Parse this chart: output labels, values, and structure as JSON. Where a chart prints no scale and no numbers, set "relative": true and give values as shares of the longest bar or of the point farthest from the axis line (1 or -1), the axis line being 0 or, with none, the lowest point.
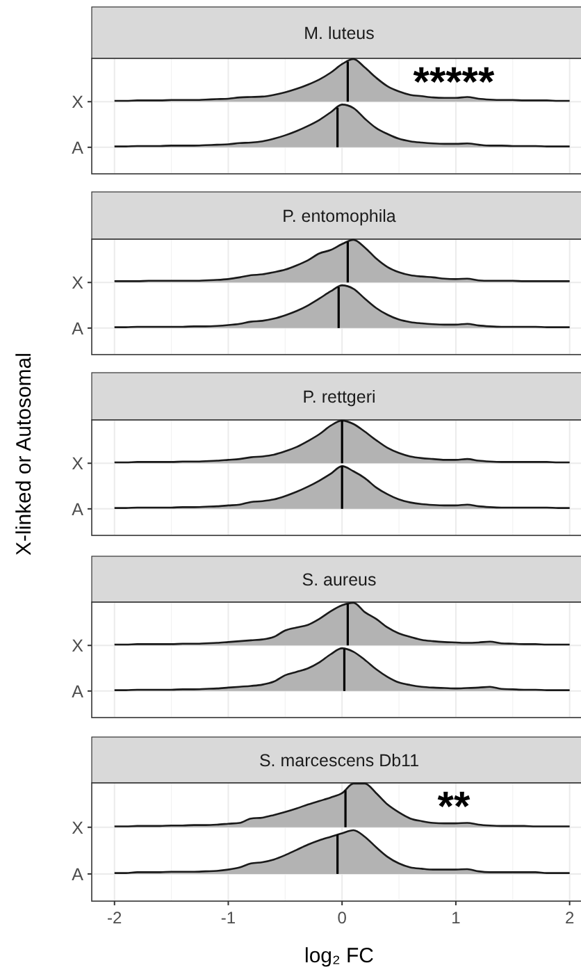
{
  "chart_data": [
    {
      "type": "area",
      "title": "M. luteus",
      "relative": true,
      "grid": true,
      "tick_labels": false,
      "xlim": [
        -2.2,
        2.1
      ],
      "xticks": [
        -2,
        -1,
        0,
        1,
        2
      ],
      "annotations": [
        "*****"
      ],
      "x": [
        -2,
        -1.9,
        -1.8,
        -1.7,
        -1.6,
        -1.5,
        -1.4,
        -1.3,
        -1.2,
        -1.1,
        -1,
        -0.9,
        -0.8,
        -0.7,
        -0.6,
        -0.5,
        -0.4,
        -0.3,
        -0.2,
        -0.1,
        0,
        0.1,
        0.2,
        0.3,
        0.4,
        0.5,
        0.6,
        0.7,
        0.8,
        0.9,
        1,
        1.1,
        1.2,
        1.3,
        1.4,
        1.5,
        1.6,
        1.7,
        1.8,
        1.9,
        2
      ],
      "ref_lines": [
        {
          "axis": "x",
          "value": 0.05
        }
      ],
      "series": [
        {
          "name": "X",
          "color": "#b3b3b3",
          "values": [
            0.02,
            0.02,
            0.03,
            0.03,
            0.03,
            0.04,
            0.04,
            0.04,
            0.05,
            0.06,
            0.07,
            0.1,
            0.11,
            0.12,
            0.16,
            0.22,
            0.3,
            0.4,
            0.52,
            0.68,
            0.88,
            1,
            0.8,
            0.56,
            0.36,
            0.24,
            0.16,
            0.13,
            0.1,
            0.09,
            0.09,
            0.11,
            0.07,
            0.05,
            0.04,
            0.04,
            0.03,
            0.03,
            0.03,
            0.02,
            0.02
          ]
        }
      ]
    },
    {
      "type": "area",
      "relative": true,
      "grid": true,
      "tick_labels": false,
      "xlim": [
        -2.2,
        2.1
      ],
      "xticks": [
        -2,
        -1,
        0,
        1,
        2
      ],
      "x": [
        -2,
        -1.9,
        -1.8,
        -1.7,
        -1.6,
        -1.5,
        -1.4,
        -1.3,
        -1.2,
        -1.1,
        -1,
        -0.9,
        -0.8,
        -0.7,
        -0.6,
        -0.5,
        -0.4,
        -0.3,
        -0.2,
        -0.1,
        0,
        0.1,
        0.2,
        0.3,
        0.4,
        0.5,
        0.6,
        0.7,
        0.8,
        0.9,
        1,
        1.1,
        1.2,
        1.3,
        1.4,
        1.5,
        1.6,
        1.7,
        1.8,
        1.9,
        2
      ],
      "ref_lines": [
        {
          "axis": "x",
          "value": -0.04
        }
      ],
      "series": [
        {
          "name": "A",
          "color": "#b3b3b3",
          "values": [
            0.02,
            0.02,
            0.03,
            0.03,
            0.03,
            0.04,
            0.04,
            0.04,
            0.05,
            0.06,
            0.07,
            0.1,
            0.11,
            0.14,
            0.2,
            0.28,
            0.38,
            0.5,
            0.64,
            0.82,
            1,
            0.92,
            0.67,
            0.45,
            0.31,
            0.2,
            0.14,
            0.11,
            0.09,
            0.08,
            0.08,
            0.09,
            0.06,
            0.04,
            0.04,
            0.03,
            0.03,
            0.03,
            0.02,
            0.02,
            0.02
          ]
        }
      ]
    },
    {
      "type": "area",
      "title": "P. entomophila",
      "relative": true,
      "grid": true,
      "tick_labels": false,
      "xlim": [
        -2.2,
        2.1
      ],
      "xticks": [
        -2,
        -1,
        0,
        1,
        2
      ],
      "x": [
        -2,
        -1.9,
        -1.8,
        -1.7,
        -1.6,
        -1.5,
        -1.4,
        -1.3,
        -1.2,
        -1.1,
        -1,
        -0.9,
        -0.8,
        -0.7,
        -0.6,
        -0.5,
        -0.4,
        -0.3,
        -0.2,
        -0.1,
        0,
        0.1,
        0.2,
        0.3,
        0.4,
        0.5,
        0.6,
        0.7,
        0.8,
        0.9,
        1,
        1.1,
        1.2,
        1.3,
        1.4,
        1.5,
        1.6,
        1.7,
        1.8,
        1.9,
        2
      ],
      "ref_lines": [
        {
          "axis": "x",
          "value": 0.05
        }
      ],
      "series": [
        {
          "name": "X",
          "color": "#b3b3b3",
          "values": [
            0.03,
            0.03,
            0.03,
            0.04,
            0.04,
            0.04,
            0.04,
            0.04,
            0.05,
            0.06,
            0.08,
            0.12,
            0.17,
            0.19,
            0.24,
            0.3,
            0.4,
            0.52,
            0.68,
            0.76,
            0.9,
            1,
            0.82,
            0.56,
            0.36,
            0.24,
            0.17,
            0.14,
            0.12,
            0.09,
            0.08,
            0.09,
            0.05,
            0.04,
            0.04,
            0.04,
            0.03,
            0.03,
            0.03,
            0.03,
            0.03
          ]
        }
      ]
    },
    {
      "type": "area",
      "relative": true,
      "grid": true,
      "tick_labels": false,
      "xlim": [
        -2.2,
        2.1
      ],
      "xticks": [
        -2,
        -1,
        0,
        1,
        2
      ],
      "x": [
        -2,
        -1.9,
        -1.8,
        -1.7,
        -1.6,
        -1.5,
        -1.4,
        -1.3,
        -1.2,
        -1.1,
        -1,
        -0.9,
        -0.8,
        -0.7,
        -0.6,
        -0.5,
        -0.4,
        -0.3,
        -0.2,
        -0.1,
        0,
        0.1,
        0.2,
        0.3,
        0.4,
        0.5,
        0.6,
        0.7,
        0.8,
        0.9,
        1,
        1.1,
        1.2,
        1.3,
        1.4,
        1.5,
        1.6,
        1.7,
        1.8,
        1.9,
        2
      ],
      "ref_lines": [
        {
          "axis": "x",
          "value": -0.03
        }
      ],
      "series": [
        {
          "name": "A",
          "color": "#b3b3b3",
          "values": [
            0.02,
            0.02,
            0.03,
            0.03,
            0.03,
            0.03,
            0.03,
            0.04,
            0.04,
            0.05,
            0.07,
            0.1,
            0.15,
            0.17,
            0.22,
            0.3,
            0.4,
            0.53,
            0.69,
            0.86,
            1,
            0.92,
            0.69,
            0.47,
            0.31,
            0.2,
            0.14,
            0.11,
            0.09,
            0.08,
            0.08,
            0.1,
            0.06,
            0.04,
            0.03,
            0.03,
            0.03,
            0.03,
            0.02,
            0.02,
            0.02
          ]
        }
      ]
    },
    {
      "type": "area",
      "title": "P. rettgeri",
      "ylabel": "X-linked or Autosomal",
      "relative": true,
      "grid": true,
      "tick_labels": false,
      "xlim": [
        -2.2,
        2.1
      ],
      "xticks": [
        -2,
        -1,
        0,
        1,
        2
      ],
      "x": [
        -2,
        -1.9,
        -1.8,
        -1.7,
        -1.6,
        -1.5,
        -1.4,
        -1.3,
        -1.2,
        -1.1,
        -1,
        -0.9,
        -0.8,
        -0.7,
        -0.6,
        -0.5,
        -0.4,
        -0.3,
        -0.2,
        -0.1,
        0,
        0.1,
        0.2,
        0.3,
        0.4,
        0.5,
        0.6,
        0.7,
        0.8,
        0.9,
        1,
        1.1,
        1.2,
        1.3,
        1.4,
        1.5,
        1.6,
        1.7,
        1.8,
        1.9,
        2
      ],
      "ref_lines": [
        {
          "axis": "x",
          "value": 0
        }
      ],
      "series": [
        {
          "name": "X",
          "color": "#b3b3b3",
          "values": [
            0.02,
            0.02,
            0.03,
            0.03,
            0.03,
            0.03,
            0.04,
            0.04,
            0.05,
            0.06,
            0.08,
            0.1,
            0.14,
            0.16,
            0.2,
            0.28,
            0.38,
            0.52,
            0.68,
            0.88,
            1,
            0.92,
            0.74,
            0.54,
            0.36,
            0.24,
            0.16,
            0.12,
            0.1,
            0.08,
            0.08,
            0.1,
            0.06,
            0.04,
            0.03,
            0.03,
            0.03,
            0.03,
            0.03,
            0.02,
            0.02
          ]
        }
      ]
    },
    {
      "type": "area",
      "relative": true,
      "grid": true,
      "tick_labels": false,
      "xlim": [
        -2.2,
        2.1
      ],
      "xticks": [
        -2,
        -1,
        0,
        1,
        2
      ],
      "x": [
        -2,
        -1.9,
        -1.8,
        -1.7,
        -1.6,
        -1.5,
        -1.4,
        -1.3,
        -1.2,
        -1.1,
        -1,
        -0.9,
        -0.8,
        -0.7,
        -0.6,
        -0.5,
        -0.4,
        -0.3,
        -0.2,
        -0.1,
        0,
        0.1,
        0.2,
        0.3,
        0.4,
        0.5,
        0.6,
        0.7,
        0.8,
        0.9,
        1,
        1.1,
        1.2,
        1.3,
        1.4,
        1.5,
        1.6,
        1.7,
        1.8,
        1.9,
        2
      ],
      "ref_lines": [
        {
          "axis": "x",
          "value": 0
        }
      ],
      "series": [
        {
          "name": "A",
          "color": "#b3b3b3",
          "values": [
            0.02,
            0.02,
            0.03,
            0.03,
            0.03,
            0.03,
            0.04,
            0.04,
            0.05,
            0.06,
            0.08,
            0.1,
            0.16,
            0.18,
            0.22,
            0.3,
            0.4,
            0.52,
            0.66,
            0.82,
            1,
            0.88,
            0.72,
            0.5,
            0.34,
            0.22,
            0.15,
            0.11,
            0.09,
            0.08,
            0.08,
            0.1,
            0.06,
            0.04,
            0.03,
            0.03,
            0.03,
            0.03,
            0.03,
            0.02,
            0.02
          ]
        }
      ]
    },
    {
      "type": "area",
      "title": "S. aureus",
      "relative": true,
      "grid": true,
      "tick_labels": false,
      "xlim": [
        -2.2,
        2.1
      ],
      "xticks": [
        -2,
        -1,
        0,
        1,
        2
      ],
      "x": [
        -2,
        -1.9,
        -1.8,
        -1.7,
        -1.6,
        -1.5,
        -1.4,
        -1.3,
        -1.2,
        -1.1,
        -1,
        -0.9,
        -0.8,
        -0.7,
        -0.6,
        -0.5,
        -0.4,
        -0.3,
        -0.2,
        -0.1,
        0,
        0.1,
        0.2,
        0.3,
        0.4,
        0.5,
        0.6,
        0.7,
        0.8,
        0.9,
        1,
        1.1,
        1.2,
        1.3,
        1.4,
        1.5,
        1.6,
        1.7,
        1.8,
        1.9,
        2
      ],
      "ref_lines": [
        {
          "axis": "x",
          "value": 0.05
        }
      ],
      "series": [
        {
          "name": "X",
          "color": "#b3b3b3",
          "values": [
            0.02,
            0.02,
            0.03,
            0.03,
            0.03,
            0.03,
            0.04,
            0.04,
            0.05,
            0.06,
            0.08,
            0.1,
            0.12,
            0.14,
            0.2,
            0.35,
            0.42,
            0.48,
            0.62,
            0.8,
            0.94,
            1,
            0.78,
            0.62,
            0.42,
            0.28,
            0.2,
            0.13,
            0.1,
            0.08,
            0.07,
            0.06,
            0.07,
            0.09,
            0.05,
            0.04,
            0.03,
            0.03,
            0.02,
            0.02,
            0.02
          ]
        }
      ]
    },
    {
      "type": "area",
      "relative": true,
      "grid": true,
      "tick_labels": false,
      "xlim": [
        -2.2,
        2.1
      ],
      "xticks": [
        -2,
        -1,
        0,
        1,
        2
      ],
      "x": [
        -2,
        -1.9,
        -1.8,
        -1.7,
        -1.6,
        -1.5,
        -1.4,
        -1.3,
        -1.2,
        -1.1,
        -1,
        -0.9,
        -0.8,
        -0.7,
        -0.6,
        -0.5,
        -0.4,
        -0.3,
        -0.2,
        -0.1,
        0,
        0.1,
        0.2,
        0.3,
        0.4,
        0.5,
        0.6,
        0.7,
        0.8,
        0.9,
        1,
        1.1,
        1.2,
        1.3,
        1.4,
        1.5,
        1.6,
        1.7,
        1.8,
        1.9,
        2
      ],
      "ref_lines": [
        {
          "axis": "x",
          "value": 0.02
        }
      ],
      "series": [
        {
          "name": "A",
          "color": "#b3b3b3",
          "values": [
            0.02,
            0.02,
            0.03,
            0.03,
            0.03,
            0.03,
            0.04,
            0.04,
            0.05,
            0.06,
            0.08,
            0.1,
            0.12,
            0.15,
            0.22,
            0.37,
            0.45,
            0.53,
            0.67,
            0.86,
            1,
            0.92,
            0.73,
            0.51,
            0.33,
            0.2,
            0.14,
            0.1,
            0.08,
            0.07,
            0.06,
            0.07,
            0.08,
            0.1,
            0.05,
            0.04,
            0.03,
            0.03,
            0.02,
            0.02,
            0.02
          ]
        }
      ]
    },
    {
      "type": "area",
      "title": "S. marcescens Db11",
      "relative": true,
      "grid": true,
      "tick_labels": false,
      "xlim": [
        -2.2,
        2.1
      ],
      "xticks": [
        -2,
        -1,
        0,
        1,
        2
      ],
      "annotations": [
        "**"
      ],
      "x": [
        -2,
        -1.9,
        -1.8,
        -1.7,
        -1.6,
        -1.5,
        -1.4,
        -1.3,
        -1.2,
        -1.1,
        -1,
        -0.9,
        -0.8,
        -0.7,
        -0.6,
        -0.5,
        -0.4,
        -0.3,
        -0.2,
        -0.1,
        0,
        0.1,
        0.2,
        0.3,
        0.4,
        0.5,
        0.6,
        0.7,
        0.8,
        0.9,
        1,
        1.1,
        1.2,
        1.3,
        1.4,
        1.5,
        1.6,
        1.7,
        1.8,
        1.9,
        2
      ],
      "ref_lines": [
        {
          "axis": "x",
          "value": 0.03
        }
      ],
      "series": [
        {
          "name": "X",
          "color": "#b3b3b3",
          "values": [
            0.02,
            0.02,
            0.03,
            0.03,
            0.03,
            0.04,
            0.04,
            0.05,
            0.05,
            0.06,
            0.08,
            0.1,
            0.2,
            0.22,
            0.28,
            0.35,
            0.43,
            0.52,
            0.6,
            0.68,
            0.78,
            1,
            1,
            0.78,
            0.52,
            0.34,
            0.2,
            0.14,
            0.1,
            0.09,
            0.09,
            0.1,
            0.06,
            0.04,
            0.03,
            0.03,
            0.03,
            0.02,
            0.02,
            0.02,
            0.02
          ]
        }
      ]
    },
    {
      "type": "area",
      "xlabel": "log₂ FC",
      "relative": true,
      "grid": true,
      "xlim": [
        -2.2,
        2.1
      ],
      "xticks": [
        -2,
        -1,
        0,
        1,
        2
      ],
      "x": [
        -2,
        -1.9,
        -1.8,
        -1.7,
        -1.6,
        -1.5,
        -1.4,
        -1.3,
        -1.2,
        -1.1,
        -1,
        -0.9,
        -0.8,
        -0.7,
        -0.6,
        -0.5,
        -0.4,
        -0.3,
        -0.2,
        -0.1,
        0,
        0.1,
        0.2,
        0.3,
        0.4,
        0.5,
        0.6,
        0.7,
        0.8,
        0.9,
        1,
        1.1,
        1.2,
        1.3,
        1.4,
        1.5,
        1.6,
        1.7,
        1.8,
        1.9,
        2
      ],
      "ref_lines": [
        {
          "axis": "x",
          "value": -0.04
        }
      ],
      "series": [
        {
          "name": "A",
          "color": "#b3b3b3",
          "values": [
            0.02,
            0.02,
            0.04,
            0.04,
            0.04,
            0.05,
            0.05,
            0.05,
            0.06,
            0.07,
            0.1,
            0.15,
            0.24,
            0.27,
            0.33,
            0.43,
            0.55,
            0.67,
            0.77,
            0.85,
            0.93,
            1,
            0.85,
            0.61,
            0.39,
            0.24,
            0.15,
            0.12,
            0.1,
            0.1,
            0.1,
            0.11,
            0.06,
            0.04,
            0.04,
            0.04,
            0.04,
            0.04,
            0.02,
            0.02,
            0.02
          ]
        }
      ]
    }
  ]
}
